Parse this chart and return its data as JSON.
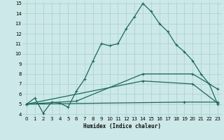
{
  "xlabel": "Humidex (Indice chaleur)",
  "background_color": "#cce8e8",
  "grid_color": "#aacfcf",
  "line_color": "#1a6b5a",
  "xlim": [
    -0.5,
    23.5
  ],
  "ylim": [
    3.8,
    15.2
  ],
  "xticks": [
    0,
    1,
    2,
    3,
    4,
    5,
    6,
    7,
    8,
    9,
    10,
    11,
    12,
    13,
    14,
    15,
    16,
    17,
    18,
    19,
    20,
    21,
    22,
    23
  ],
  "yticks": [
    4,
    5,
    6,
    7,
    8,
    9,
    10,
    11,
    12,
    13,
    14,
    15
  ],
  "line1_x": [
    0,
    1,
    2,
    3,
    4,
    5,
    6,
    7,
    8,
    9,
    10,
    11,
    12,
    13,
    14,
    15,
    16,
    17,
    18,
    19,
    20,
    21,
    22,
    23
  ],
  "line1_y": [
    5.0,
    5.6,
    4.1,
    5.2,
    5.1,
    4.7,
    6.3,
    7.5,
    9.3,
    11.0,
    10.8,
    11.0,
    12.5,
    13.7,
    15.0,
    14.2,
    13.0,
    12.2,
    10.9,
    10.2,
    9.3,
    8.0,
    7.0,
    5.0
  ],
  "line2_x": [
    0,
    6,
    14,
    20,
    23
  ],
  "line2_y": [
    5.0,
    5.3,
    8.0,
    8.0,
    6.5
  ],
  "line3_x": [
    0,
    14,
    20,
    23
  ],
  "line3_y": [
    5.0,
    7.3,
    7.0,
    5.1
  ],
  "line4_x": [
    0,
    19,
    23
  ],
  "line4_y": [
    5.0,
    5.2,
    5.2
  ]
}
